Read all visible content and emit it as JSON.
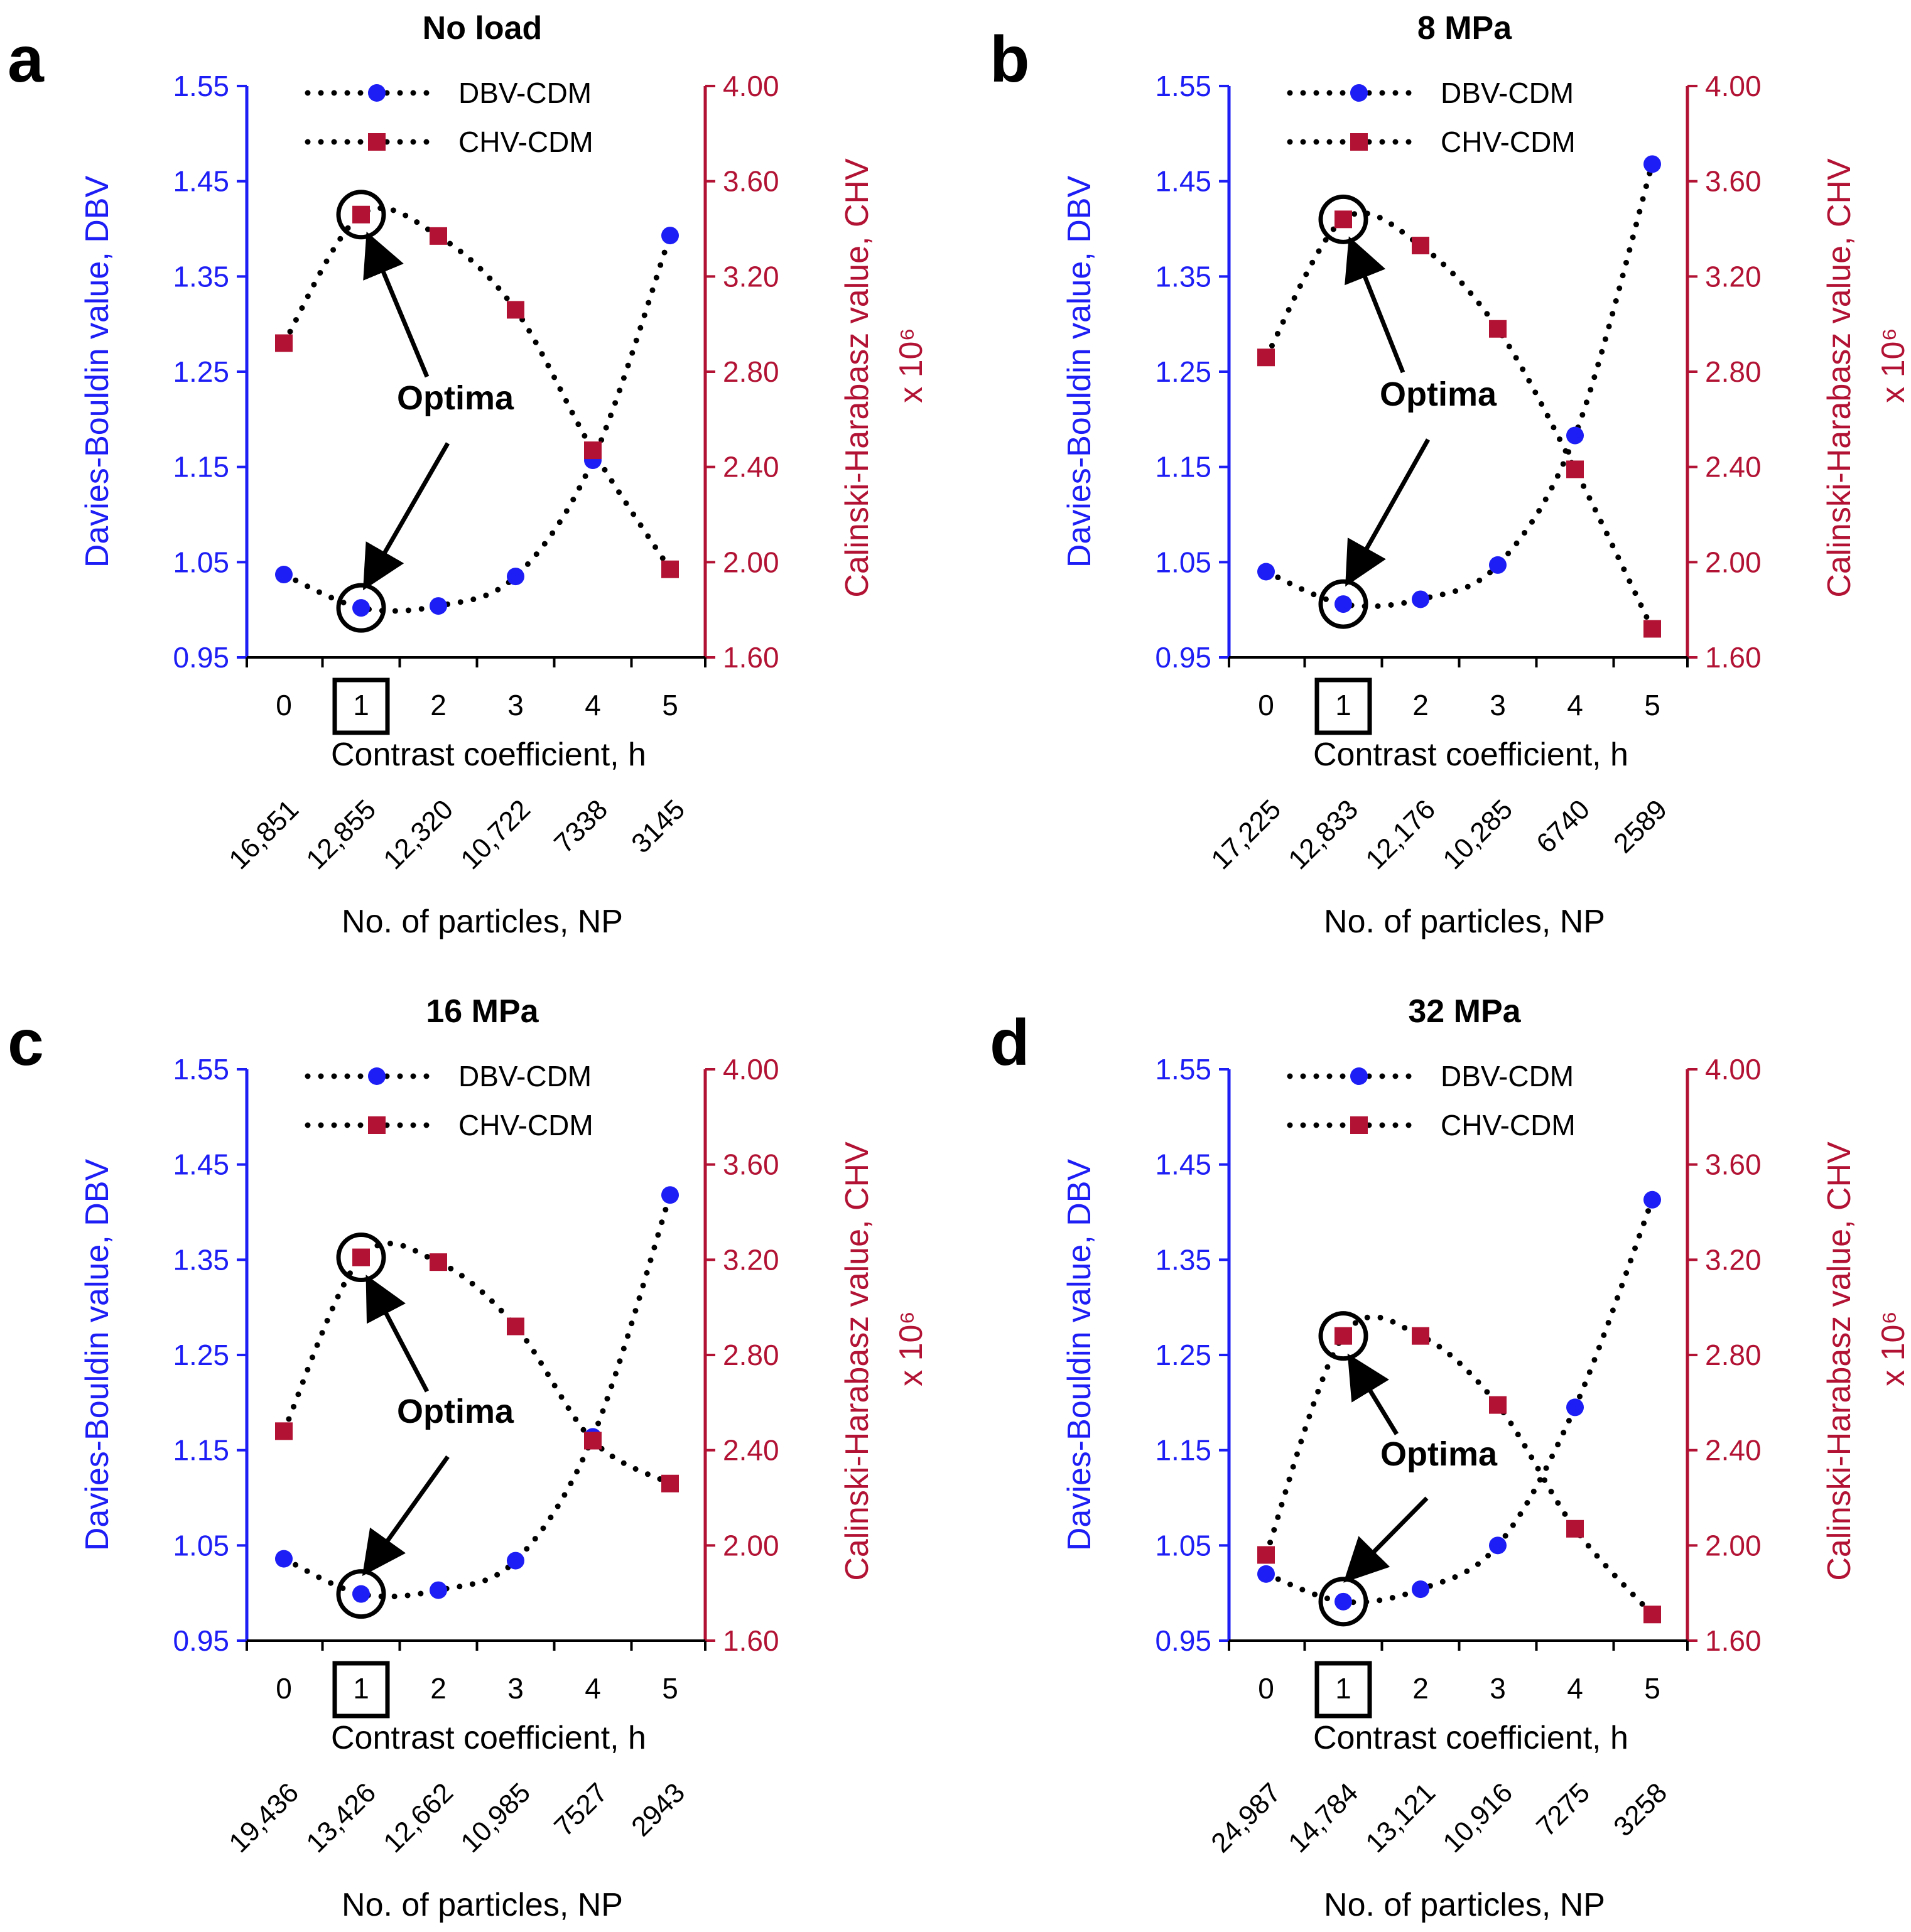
{
  "colors": {
    "dbv": "#1d1df5",
    "chv": "#b21334",
    "text": "#000000",
    "dots": "#000000"
  },
  "legend": {
    "dbv_label": "DBV-CDM",
    "chv_label": "CHV-CDM"
  },
  "annotation_label": "Optima",
  "axes": {
    "xlabel": "Contrast coefficient, h",
    "np_label": "No. of particles, NP",
    "ylabel_left": "Davies-Bouldin value, DBV",
    "ylabel_right": "Calinski-Harabasz value, CHV",
    "ylabel_right_scale": "x 10⁶",
    "ylim_left": [
      0.95,
      1.55
    ],
    "ylim_right": [
      1.6,
      4.0
    ],
    "left_ticks": [
      "0.95",
      "1.05",
      "1.15",
      "1.25",
      "1.35",
      "1.45",
      "1.55"
    ],
    "right_ticks": [
      "1.60",
      "2.00",
      "2.40",
      "2.80",
      "3.20",
      "3.60",
      "4.00"
    ],
    "x_ticks": [
      "0",
      "1",
      "2",
      "3",
      "4",
      "5"
    ],
    "highlighted_x": "1"
  },
  "chart_data": [
    {
      "type": "scatter",
      "letter": "a",
      "title": "No load",
      "x": [
        0,
        1,
        2,
        3,
        4,
        5
      ],
      "np_labels": [
        "16,851",
        "12,855",
        "12,320",
        "10,722",
        "7338",
        "3145"
      ],
      "series": [
        {
          "name": "DBV-CDM",
          "axis": "left",
          "values": [
            1.037,
            1.002,
            1.004,
            1.035,
            1.157,
            1.393
          ]
        },
        {
          "name": "CHV-CDM",
          "axis": "right",
          "values": [
            2.92,
            3.46,
            3.37,
            3.06,
            2.47,
            1.97
          ]
        }
      ],
      "optimum": {
        "x": 1,
        "dbv": 1.002,
        "chv": 3.46
      }
    },
    {
      "type": "scatter",
      "letter": "b",
      "title": "8 MPa",
      "x": [
        0,
        1,
        2,
        3,
        4,
        5
      ],
      "np_labels": [
        "17,225",
        "12,833",
        "12,176",
        "10,285",
        "6740",
        "2589"
      ],
      "series": [
        {
          "name": "DBV-CDM",
          "axis": "left",
          "values": [
            1.04,
            1.006,
            1.011,
            1.047,
            1.183,
            1.468
          ]
        },
        {
          "name": "CHV-CDM",
          "axis": "right",
          "values": [
            2.86,
            3.44,
            3.33,
            2.98,
            2.39,
            1.72
          ]
        }
      ],
      "optimum": {
        "x": 1,
        "dbv": 1.006,
        "chv": 3.44
      }
    },
    {
      "type": "scatter",
      "letter": "c",
      "title": "16 MPa",
      "x": [
        0,
        1,
        2,
        3,
        4,
        5
      ],
      "np_labels": [
        "19,436",
        "13,426",
        "12,662",
        "10,985",
        "7527",
        "2943"
      ],
      "series": [
        {
          "name": "DBV-CDM",
          "axis": "left",
          "values": [
            1.036,
            0.999,
            1.003,
            1.034,
            1.164,
            1.418
          ]
        },
        {
          "name": "CHV-CDM",
          "axis": "right",
          "values": [
            2.48,
            3.21,
            3.19,
            2.92,
            2.44,
            2.26
          ]
        }
      ],
      "optimum": {
        "x": 1,
        "dbv": 0.999,
        "chv": 3.21
      }
    },
    {
      "type": "scatter",
      "letter": "d",
      "title": "32 MPa",
      "x": [
        0,
        1,
        2,
        3,
        4,
        5
      ],
      "np_labels": [
        "24,987",
        "14,784",
        "13,121",
        "10,916",
        "7275",
        "3258"
      ],
      "series": [
        {
          "name": "DBV-CDM",
          "axis": "left",
          "values": [
            1.02,
            0.991,
            1.004,
            1.05,
            1.195,
            1.413
          ]
        },
        {
          "name": "CHV-CDM",
          "axis": "right",
          "values": [
            1.96,
            2.88,
            2.88,
            2.59,
            2.07,
            1.71
          ]
        }
      ],
      "optimum": {
        "x": 1,
        "dbv": 0.991,
        "chv": 2.88
      }
    }
  ]
}
